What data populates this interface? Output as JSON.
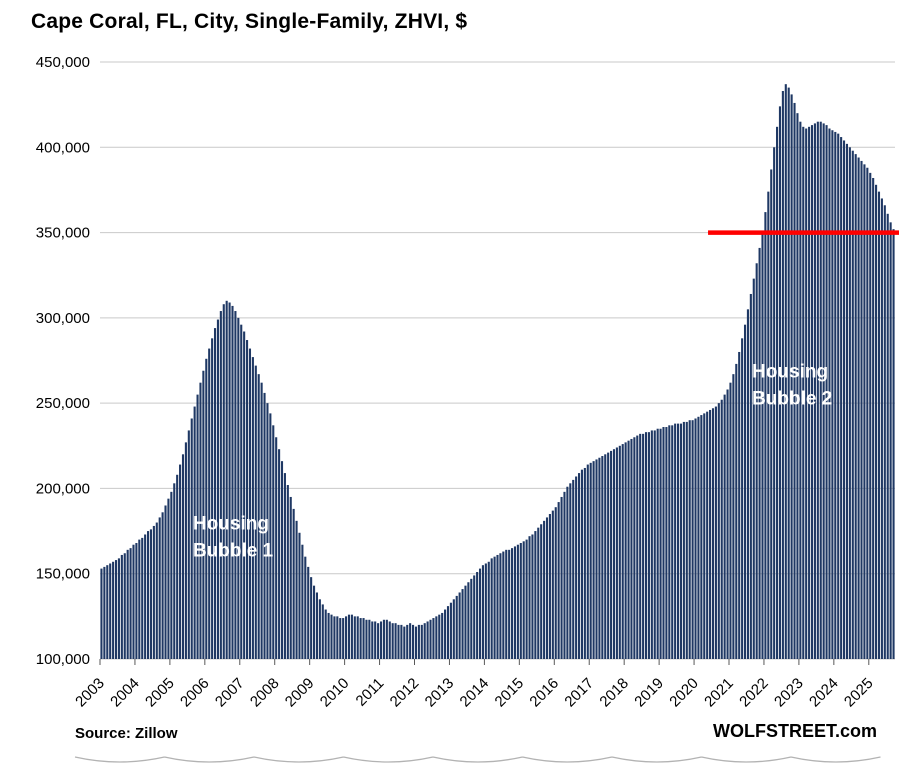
{
  "footer": {
    "source_label": "Source: Zillow",
    "watermark": "WOLFSTREET.com"
  },
  "chart_data": {
    "type": "bar",
    "title": "Cape Coral, FL, City, Single-Family, ZHVI, $",
    "x_unit": "month",
    "start": "2003-01",
    "end": "2025-09",
    "start_year": 2003,
    "ylim": [
      100000,
      450000
    ],
    "yticks": [
      100000,
      150000,
      200000,
      250000,
      300000,
      350000,
      400000,
      450000
    ],
    "xtick_labels": [
      "2003",
      "2004",
      "2005",
      "2006",
      "2007",
      "2008",
      "2009",
      "2010",
      "2011",
      "2012",
      "2013",
      "2014",
      "2015",
      "2016",
      "2017",
      "2018",
      "2019",
      "2020",
      "2021",
      "2022",
      "2023",
      "2024",
      "2025"
    ],
    "grid": true,
    "grid_color": "#c9c9c9",
    "tick_color": "#595959",
    "bar_color": "#1f3864",
    "values": [
      153000,
      154000,
      155000,
      156000,
      157000,
      158000,
      159000,
      161000,
      162000,
      164000,
      165000,
      167000,
      168000,
      170000,
      171000,
      173000,
      175000,
      176000,
      178000,
      180000,
      183000,
      186000,
      190000,
      194000,
      198000,
      203000,
      208000,
      214000,
      220000,
      227000,
      234000,
      241000,
      248000,
      255000,
      262000,
      269000,
      276000,
      282000,
      288000,
      294000,
      299000,
      304000,
      308000,
      310000,
      309000,
      307000,
      304000,
      300000,
      296000,
      292000,
      287000,
      282000,
      277000,
      272000,
      267000,
      262000,
      256000,
      250000,
      244000,
      237000,
      230000,
      223000,
      216000,
      209000,
      202000,
      195000,
      188000,
      181000,
      174000,
      167000,
      160000,
      154000,
      148000,
      143000,
      139000,
      135000,
      132000,
      129000,
      127000,
      126000,
      125000,
      125000,
      124000,
      124000,
      125000,
      126000,
      126000,
      125000,
      125000,
      124000,
      124000,
      123000,
      123000,
      122000,
      122000,
      121000,
      122000,
      123000,
      123000,
      122000,
      121000,
      121000,
      120000,
      120000,
      119000,
      120000,
      121000,
      120000,
      119000,
      120000,
      120000,
      121000,
      122000,
      123000,
      124000,
      125000,
      126000,
      127000,
      129000,
      131000,
      133000,
      135000,
      137000,
      139000,
      141000,
      143000,
      145000,
      147000,
      149000,
      151000,
      153000,
      155000,
      156000,
      157000,
      159000,
      160000,
      161000,
      162000,
      163000,
      164000,
      164000,
      165000,
      166000,
      167000,
      168000,
      169000,
      170000,
      172000,
      173000,
      175000,
      177000,
      179000,
      181000,
      183000,
      185000,
      187000,
      189000,
      192000,
      195000,
      198000,
      201000,
      203000,
      205000,
      207000,
      209000,
      211000,
      212000,
      214000,
      215000,
      216000,
      217000,
      218000,
      219000,
      220000,
      221000,
      222000,
      223000,
      224000,
      225000,
      226000,
      227000,
      228000,
      229000,
      230000,
      231000,
      232000,
      232000,
      233000,
      233000,
      234000,
      234000,
      235000,
      235000,
      236000,
      236000,
      237000,
      237000,
      238000,
      238000,
      238000,
      239000,
      239000,
      240000,
      240000,
      241000,
      242000,
      243000,
      244000,
      245000,
      246000,
      247000,
      248000,
      250000,
      252000,
      255000,
      258000,
      262000,
      267000,
      273000,
      280000,
      288000,
      296000,
      305000,
      314000,
      323000,
      332000,
      341000,
      351000,
      362000,
      374000,
      387000,
      400000,
      412000,
      424000,
      433000,
      437000,
      435000,
      431000,
      426000,
      420000,
      415000,
      412000,
      411000,
      412000,
      413000,
      414000,
      415000,
      415000,
      414000,
      413000,
      411000,
      410000,
      409000,
      408000,
      406000,
      404000,
      402000,
      400000,
      398000,
      396000,
      394000,
      392000,
      390000,
      388000,
      385000,
      382000,
      378000,
      374000,
      370000,
      366000,
      361000,
      356000,
      352000
    ],
    "reference_line": {
      "value": 350000,
      "start_year": 2020.4,
      "color": "#ff0000",
      "width": 4.5
    },
    "annotations": [
      {
        "id": "housing-bubble-1",
        "lines": [
          "Housing",
          "Bubble 1"
        ],
        "x_year": 2005.66,
        "y_value": 176000,
        "color": "#ffffff"
      },
      {
        "id": "housing-bubble-2",
        "lines": [
          "Housing",
          "Bubble 2"
        ],
        "x_year": 2021.66,
        "y_value": 265000,
        "color": "#ffffff"
      }
    ]
  }
}
